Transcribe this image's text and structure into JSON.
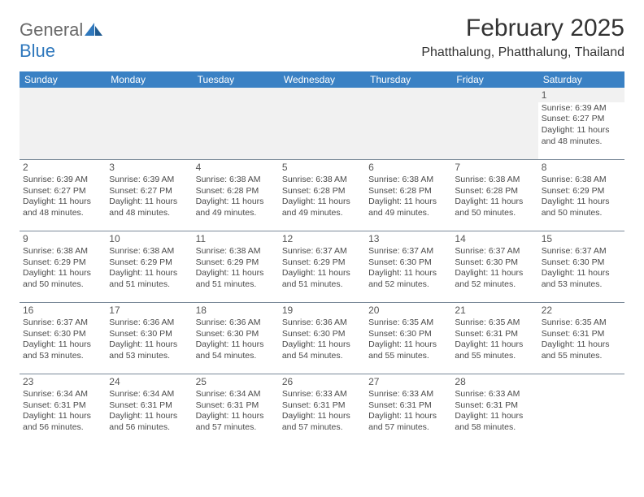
{
  "brand": {
    "part1": "General",
    "part2": "Blue"
  },
  "title": "February 2025",
  "location": "Phatthalung, Phatthalung, Thailand",
  "colors": {
    "header_bg": "#3a81c4",
    "header_text": "#ffffff",
    "border": "#7b8a99",
    "logo_gray": "#6a6a6a",
    "logo_blue": "#2f78bd"
  },
  "weekdays": [
    "Sunday",
    "Monday",
    "Tuesday",
    "Wednesday",
    "Thursday",
    "Friday",
    "Saturday"
  ],
  "weeks": [
    [
      null,
      null,
      null,
      null,
      null,
      null,
      {
        "n": "1",
        "sr": "Sunrise: 6:39 AM",
        "ss": "Sunset: 6:27 PM",
        "dl": "Daylight: 11 hours and 48 minutes."
      }
    ],
    [
      {
        "n": "2",
        "sr": "Sunrise: 6:39 AM",
        "ss": "Sunset: 6:27 PM",
        "dl": "Daylight: 11 hours and 48 minutes."
      },
      {
        "n": "3",
        "sr": "Sunrise: 6:39 AM",
        "ss": "Sunset: 6:27 PM",
        "dl": "Daylight: 11 hours and 48 minutes."
      },
      {
        "n": "4",
        "sr": "Sunrise: 6:38 AM",
        "ss": "Sunset: 6:28 PM",
        "dl": "Daylight: 11 hours and 49 minutes."
      },
      {
        "n": "5",
        "sr": "Sunrise: 6:38 AM",
        "ss": "Sunset: 6:28 PM",
        "dl": "Daylight: 11 hours and 49 minutes."
      },
      {
        "n": "6",
        "sr": "Sunrise: 6:38 AM",
        "ss": "Sunset: 6:28 PM",
        "dl": "Daylight: 11 hours and 49 minutes."
      },
      {
        "n": "7",
        "sr": "Sunrise: 6:38 AM",
        "ss": "Sunset: 6:28 PM",
        "dl": "Daylight: 11 hours and 50 minutes."
      },
      {
        "n": "8",
        "sr": "Sunrise: 6:38 AM",
        "ss": "Sunset: 6:29 PM",
        "dl": "Daylight: 11 hours and 50 minutes."
      }
    ],
    [
      {
        "n": "9",
        "sr": "Sunrise: 6:38 AM",
        "ss": "Sunset: 6:29 PM",
        "dl": "Daylight: 11 hours and 50 minutes."
      },
      {
        "n": "10",
        "sr": "Sunrise: 6:38 AM",
        "ss": "Sunset: 6:29 PM",
        "dl": "Daylight: 11 hours and 51 minutes."
      },
      {
        "n": "11",
        "sr": "Sunrise: 6:38 AM",
        "ss": "Sunset: 6:29 PM",
        "dl": "Daylight: 11 hours and 51 minutes."
      },
      {
        "n": "12",
        "sr": "Sunrise: 6:37 AM",
        "ss": "Sunset: 6:29 PM",
        "dl": "Daylight: 11 hours and 51 minutes."
      },
      {
        "n": "13",
        "sr": "Sunrise: 6:37 AM",
        "ss": "Sunset: 6:30 PM",
        "dl": "Daylight: 11 hours and 52 minutes."
      },
      {
        "n": "14",
        "sr": "Sunrise: 6:37 AM",
        "ss": "Sunset: 6:30 PM",
        "dl": "Daylight: 11 hours and 52 minutes."
      },
      {
        "n": "15",
        "sr": "Sunrise: 6:37 AM",
        "ss": "Sunset: 6:30 PM",
        "dl": "Daylight: 11 hours and 53 minutes."
      }
    ],
    [
      {
        "n": "16",
        "sr": "Sunrise: 6:37 AM",
        "ss": "Sunset: 6:30 PM",
        "dl": "Daylight: 11 hours and 53 minutes."
      },
      {
        "n": "17",
        "sr": "Sunrise: 6:36 AM",
        "ss": "Sunset: 6:30 PM",
        "dl": "Daylight: 11 hours and 53 minutes."
      },
      {
        "n": "18",
        "sr": "Sunrise: 6:36 AM",
        "ss": "Sunset: 6:30 PM",
        "dl": "Daylight: 11 hours and 54 minutes."
      },
      {
        "n": "19",
        "sr": "Sunrise: 6:36 AM",
        "ss": "Sunset: 6:30 PM",
        "dl": "Daylight: 11 hours and 54 minutes."
      },
      {
        "n": "20",
        "sr": "Sunrise: 6:35 AM",
        "ss": "Sunset: 6:30 PM",
        "dl": "Daylight: 11 hours and 55 minutes."
      },
      {
        "n": "21",
        "sr": "Sunrise: 6:35 AM",
        "ss": "Sunset: 6:31 PM",
        "dl": "Daylight: 11 hours and 55 minutes."
      },
      {
        "n": "22",
        "sr": "Sunrise: 6:35 AM",
        "ss": "Sunset: 6:31 PM",
        "dl": "Daylight: 11 hours and 55 minutes."
      }
    ],
    [
      {
        "n": "23",
        "sr": "Sunrise: 6:34 AM",
        "ss": "Sunset: 6:31 PM",
        "dl": "Daylight: 11 hours and 56 minutes."
      },
      {
        "n": "24",
        "sr": "Sunrise: 6:34 AM",
        "ss": "Sunset: 6:31 PM",
        "dl": "Daylight: 11 hours and 56 minutes."
      },
      {
        "n": "25",
        "sr": "Sunrise: 6:34 AM",
        "ss": "Sunset: 6:31 PM",
        "dl": "Daylight: 11 hours and 57 minutes."
      },
      {
        "n": "26",
        "sr": "Sunrise: 6:33 AM",
        "ss": "Sunset: 6:31 PM",
        "dl": "Daylight: 11 hours and 57 minutes."
      },
      {
        "n": "27",
        "sr": "Sunrise: 6:33 AM",
        "ss": "Sunset: 6:31 PM",
        "dl": "Daylight: 11 hours and 57 minutes."
      },
      {
        "n": "28",
        "sr": "Sunrise: 6:33 AM",
        "ss": "Sunset: 6:31 PM",
        "dl": "Daylight: 11 hours and 58 minutes."
      },
      null
    ]
  ]
}
